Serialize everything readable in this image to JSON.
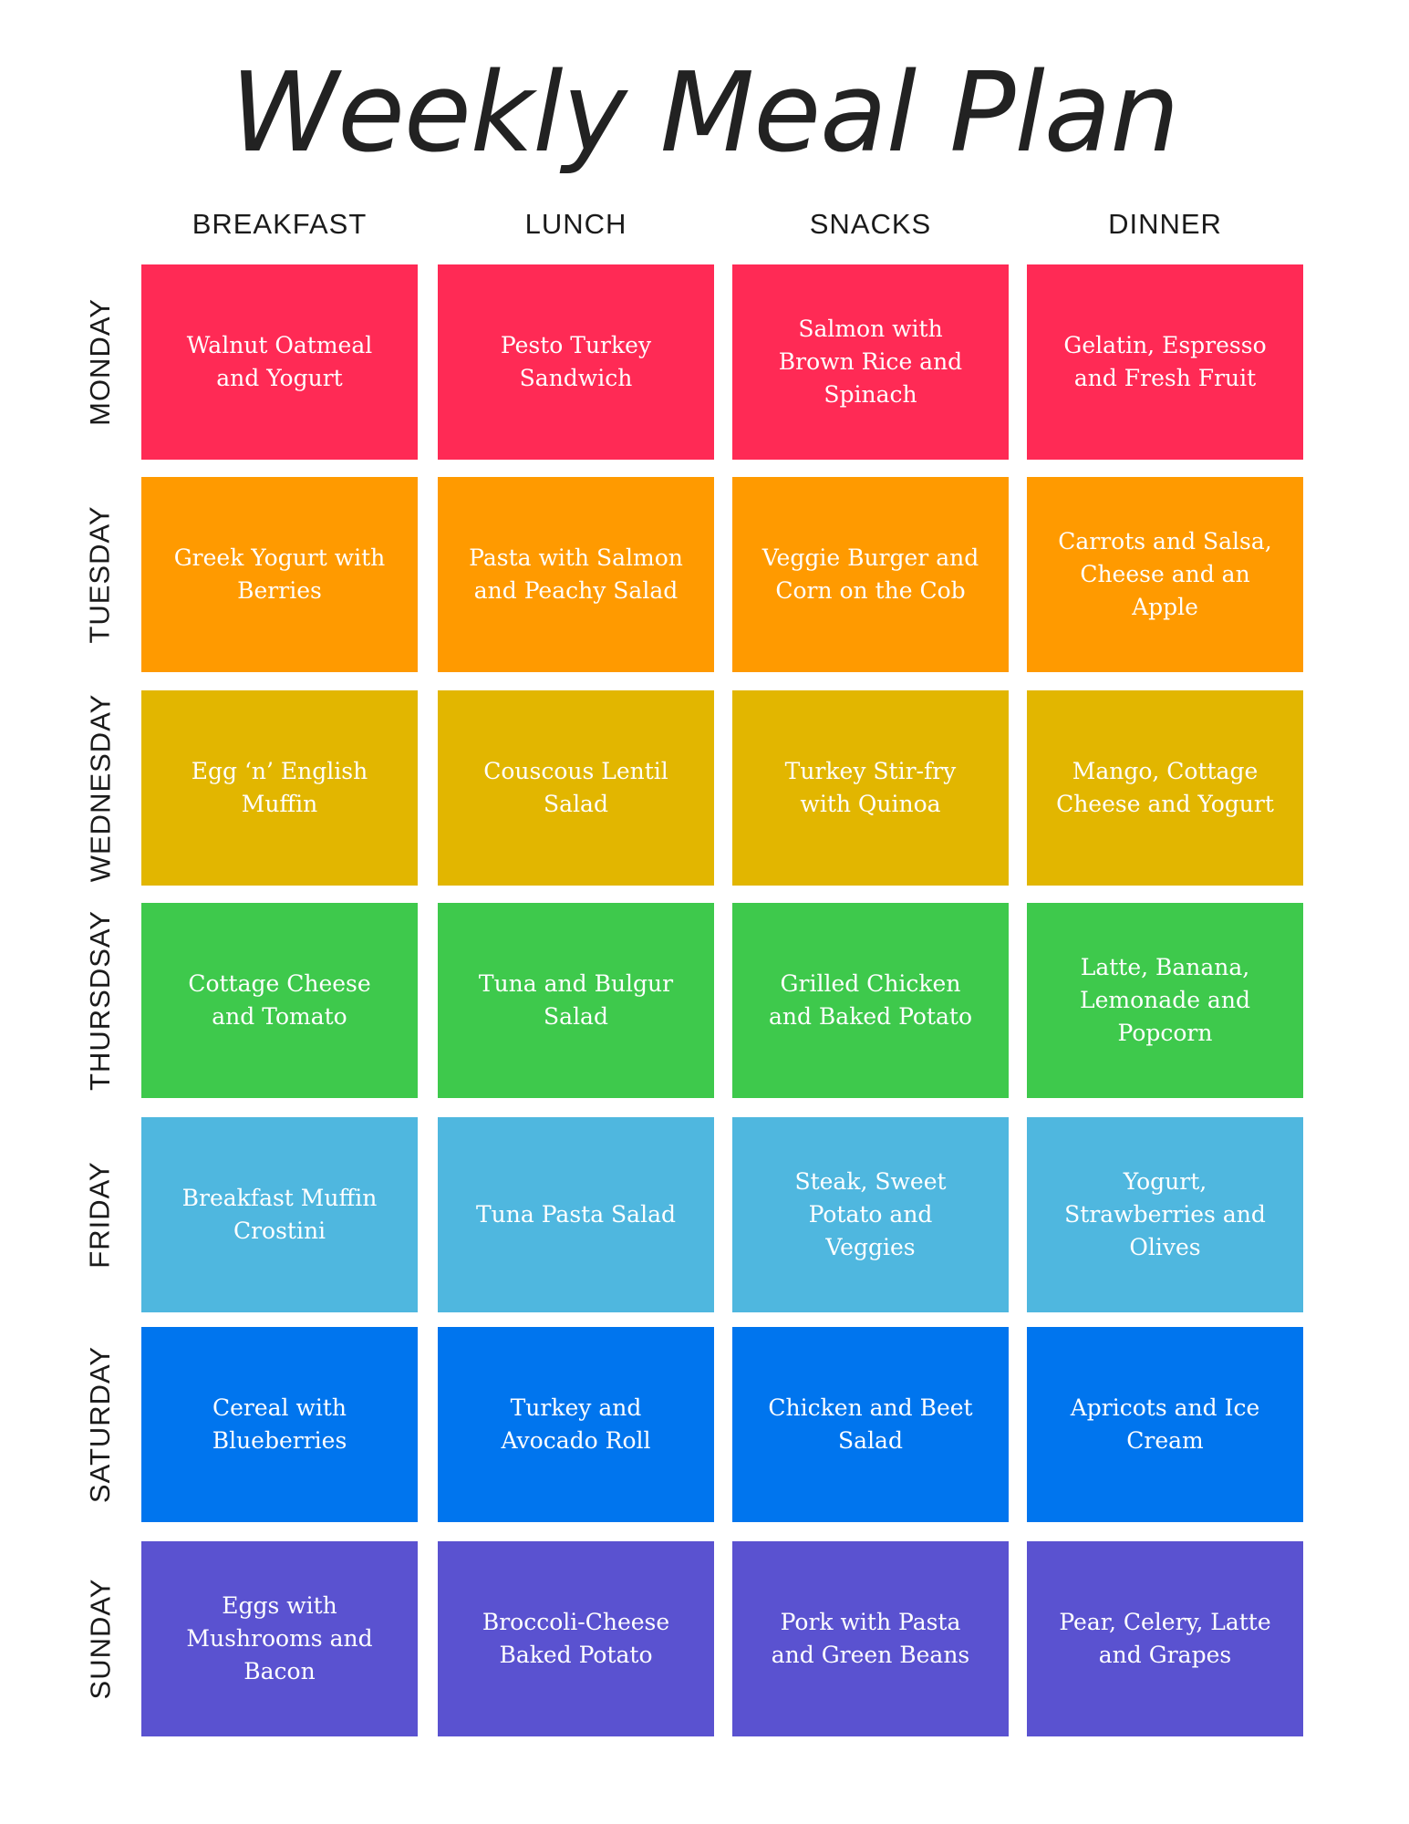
{
  "title": "Weekly Meal Plan",
  "columns": [
    "BREAKFAST",
    "LUNCH",
    "SNACKS",
    "DINNER"
  ],
  "rows": [
    {
      "day": "MONDAY",
      "color": "#ff2a55",
      "meals": [
        "Walnut Oatmeal and Yogurt",
        "Pesto Turkey Sandwich",
        "Salmon with Brown Rice and Spinach",
        "Gelatin, Espresso and Fresh Fruit"
      ]
    },
    {
      "day": "TUESDAY",
      "color": "#ff9a00",
      "meals": [
        "Greek Yogurt with Berries",
        "Pasta with Salmon and Peachy Salad",
        "Veggie Burger and Corn on the Cob",
        "Carrots and Salsa, Cheese and an Apple"
      ]
    },
    {
      "day": "WEDNESDAY",
      "color": "#e2b600",
      "meals": [
        "Egg ‘n’ English Muffin",
        "Couscous Lentil Salad",
        "Turkey Stir-fry with Quinoa",
        "Mango, Cottage Cheese and Yogurt"
      ]
    },
    {
      "day": "THURSDSAY",
      "color": "#3ec94c",
      "meals": [
        "Cottage Cheese and Tomato",
        "Tuna and Bulgur Salad",
        "Grilled Chicken and Baked Potato",
        "Latte, Banana, Lemonade and Popcorn"
      ]
    },
    {
      "day": "FRIDAY",
      "color": "#4fb7df",
      "meals": [
        "Breakfast Muffin Crostini",
        "Tuna Pasta Salad",
        "Steak, Sweet Potato and Veggies",
        "Yogurt, Strawberries and Olives"
      ]
    },
    {
      "day": "SATURDAY",
      "color": "#0075ee",
      "meals": [
        "Cereal with Blueberries",
        "Turkey and Avocado Roll",
        "Chicken and Beet Salad",
        "Apricots and Ice Cream"
      ]
    },
    {
      "day": "SUNDAY",
      "color": "#5a52d0",
      "meals": [
        "Eggs with Mushrooms and Bacon",
        "Broccoli-Cheese Baked Potato",
        "Pork with Pasta and Green Beans",
        "Pear, Celery, Latte and Grapes"
      ]
    }
  ]
}
